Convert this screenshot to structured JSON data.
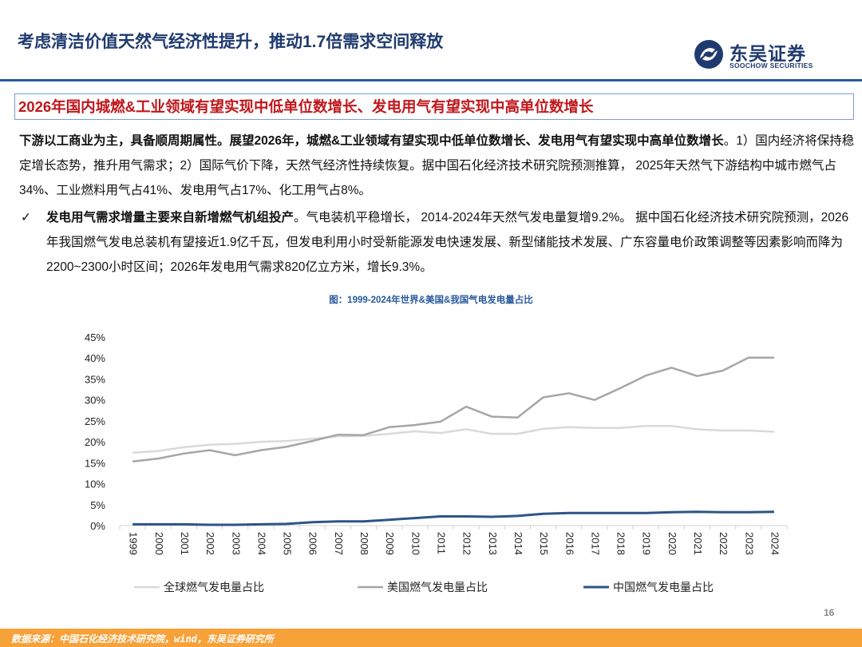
{
  "header": {
    "title": "考虑清洁价值天然气经济性提升，推动1.7倍需求空间释放",
    "logo_cn": "东吴证券",
    "logo_en": "SOOCHOW SECURITIES"
  },
  "headline": "2026年国内城燃&工业领域有望实现中低单位数增长、发电用气有望实现中高单位数增长",
  "paragraph": {
    "bold": "下游以工商业为主，具备顺周期属性。展望2026年，城燃&工业领域有望实现中低单位数增长、发电用气有望实现中高单位数增长",
    "rest": "。1）国内经济将保持稳定增长态势，推升用气需求；2）国际气价下降，天然气经济性持续恢复。据中国石化经济技术研究院预测推算， 2025年天然气下游结构中城市燃气占34%、工业燃料用气占41%、发电用气占17%、化工用气占8%。"
  },
  "bullet": {
    "mark": "✓",
    "bold": "发电用气需求增量主要来自新增燃气机组投产",
    "rest": "。气电装机平稳增长， 2014-2024年天然气发电量复增9.2%。 据中国石化经济技术研究院预测，2026年我国燃气发电总装机有望接近1.9亿千瓦，但发电利用小时受新能源发电快速发展、新型储能技术发展、广东容量电价政策调整等因素影响而降为2200~2300小时区间；2026年发电用气需求820亿立方米，增长9.3%。"
  },
  "figure_caption": "图：1999-2024年世界&美国&我国气电发电量占比",
  "page_number": "16",
  "footer_source": "数据来源：中国石化经济技术研究院，wind，东吴证券研究所",
  "colors": {
    "title_blue": "#1f3a6e",
    "headline_red": "#c0171c",
    "world_series": "#d9d9d9",
    "us_series": "#a6a6a6",
    "china_series": "#2f5486",
    "footer": "#f7a139"
  },
  "chart_data": {
    "type": "line",
    "title": "",
    "xlabel": "",
    "ylabel": "",
    "ylim": [
      0,
      45
    ],
    "yticks": [
      "0%",
      "5%",
      "10%",
      "15%",
      "20%",
      "25%",
      "30%",
      "35%",
      "40%",
      "45%"
    ],
    "x": [
      "1999",
      "2000",
      "2001",
      "2002",
      "2003",
      "2004",
      "2005",
      "2006",
      "2007",
      "2008",
      "2009",
      "2010",
      "2011",
      "2012",
      "2013",
      "2014",
      "2015",
      "2016",
      "2017",
      "2018",
      "2019",
      "2020",
      "2021",
      "2022",
      "2023",
      "2024"
    ],
    "grid": false,
    "legend_position": "bottom",
    "series": [
      {
        "name": "全球燃气发电量占比",
        "color": "#d9d9d9",
        "values": [
          17.4,
          17.8,
          18.7,
          19.3,
          19.5,
          20.0,
          20.2,
          20.7,
          21.3,
          21.4,
          21.9,
          22.5,
          22.1,
          23.0,
          21.9,
          21.9,
          23.1,
          23.5,
          23.3,
          23.3,
          23.8,
          23.8,
          23.0,
          22.7,
          22.7,
          22.4
        ]
      },
      {
        "name": "美国燃气发电量占比",
        "color": "#a6a6a6",
        "values": [
          15.3,
          16.0,
          17.2,
          18.0,
          16.8,
          18.0,
          18.8,
          20.2,
          21.7,
          21.6,
          23.5,
          24.0,
          24.8,
          28.4,
          26.0,
          25.8,
          30.6,
          31.6,
          30.0,
          32.8,
          35.8,
          37.7,
          35.7,
          37.0,
          40.1,
          40.1
        ]
      },
      {
        "name": "中国燃气发电量占比",
        "color": "#2f5486",
        "values": [
          0.3,
          0.3,
          0.3,
          0.2,
          0.2,
          0.3,
          0.4,
          0.8,
          1.0,
          1.0,
          1.4,
          1.8,
          2.2,
          2.2,
          2.1,
          2.3,
          2.8,
          3.0,
          3.0,
          3.0,
          3.0,
          3.2,
          3.3,
          3.2,
          3.2,
          3.3
        ]
      }
    ]
  }
}
